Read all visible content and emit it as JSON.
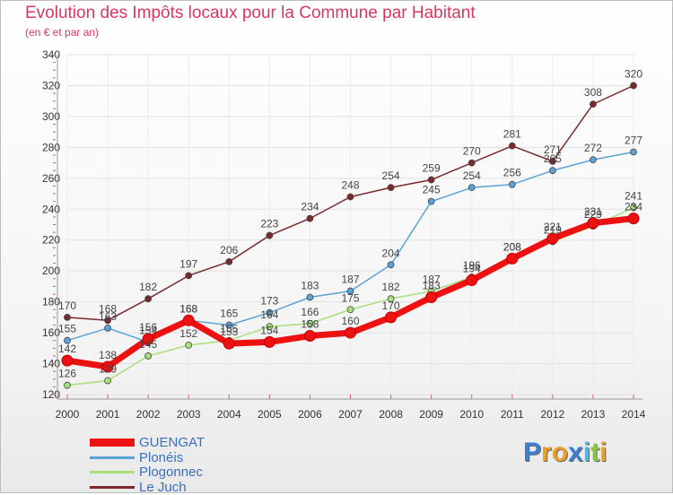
{
  "chart_data": {
    "type": "line",
    "title": "Evolution des Impôts locaux pour la Commune par Habitant",
    "subtitle": "(en € et par an)",
    "xlabel": "",
    "ylabel": "",
    "ylim": [
      120,
      340
    ],
    "yticks": [
      120,
      140,
      160,
      180,
      200,
      220,
      240,
      260,
      280,
      300,
      320,
      340
    ],
    "x": [
      "2000",
      "2001",
      "2002",
      "2003",
      "2004",
      "2005",
      "2006",
      "2007",
      "2008",
      "2009",
      "2010",
      "2011",
      "2012",
      "2013",
      "2014"
    ],
    "grid": true,
    "legend_position": "bottom-left",
    "series": [
      {
        "name": "GUENGAT",
        "color": "#ee1111",
        "values": [
          142,
          138,
          156,
          168,
          153,
          154,
          158,
          160,
          170,
          183,
          194,
          208,
          221,
          231,
          234
        ]
      },
      {
        "name": "Plonéis",
        "color": "#5ba3d6",
        "values": [
          155,
          163,
          154,
          168,
          165,
          173,
          183,
          187,
          204,
          245,
          254,
          256,
          265,
          272,
          277
        ]
      },
      {
        "name": "Plogonnec",
        "color": "#a8e07a",
        "values": [
          126,
          129,
          145,
          152,
          155,
          164,
          166,
          175,
          182,
          187,
          196,
          208,
          219,
          229,
          241
        ]
      },
      {
        "name": "Le Juch",
        "color": "#7a2a2a",
        "values": [
          170,
          168,
          182,
          197,
          206,
          223,
          234,
          248,
          254,
          259,
          270,
          281,
          271,
          308,
          320
        ]
      }
    ]
  },
  "branding": {
    "logo_text": "Proxiti",
    "letter_colors": [
      "#3a7fd0",
      "#e8a02c",
      "#e8a02c",
      "#3a7fd0",
      "#5ab5e0",
      "#8cc63f",
      "#e8a02c"
    ]
  }
}
